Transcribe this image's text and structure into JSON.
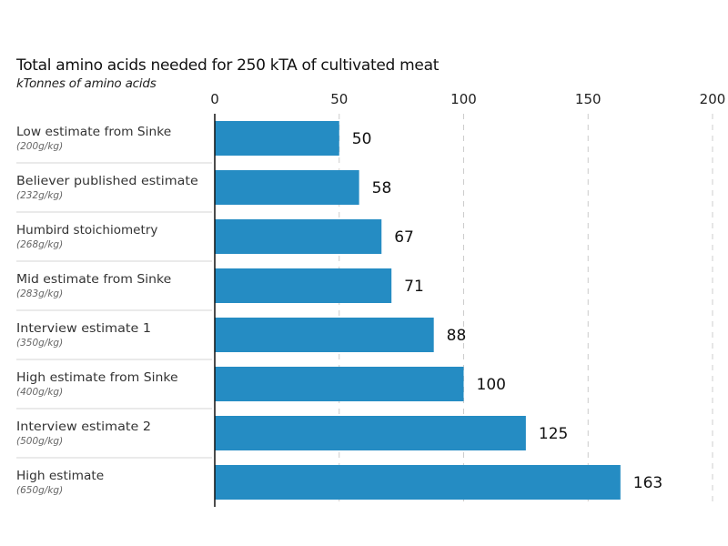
{
  "chart_data": {
    "type": "bar",
    "orientation": "horizontal",
    "title": "Total amino acids needed for 250 kTA of cultivated meat",
    "subtitle": "kTonnes of amino acids",
    "categories": [
      {
        "label": "Low estimate from Sinke",
        "sublabel": "(200g/kg)"
      },
      {
        "label": "Believer published estimate",
        "sublabel": "(232g/kg)"
      },
      {
        "label": "Humbird stoichiometry",
        "sublabel": "(268g/kg)"
      },
      {
        "label": "Mid estimate from Sinke",
        "sublabel": "(283g/kg)"
      },
      {
        "label": "Interview estimate 1",
        "sublabel": "(350g/kg)"
      },
      {
        "label": "High estimate from Sinke",
        "sublabel": "(400g/kg)"
      },
      {
        "label": "Interview estimate 2",
        "sublabel": "(500g/kg)"
      },
      {
        "label": "High estimate",
        "sublabel": "(650g/kg)"
      }
    ],
    "values": [
      50,
      58,
      67,
      71,
      88,
      100,
      125,
      163
    ],
    "xlim": [
      0,
      200
    ],
    "xticks": [
      0,
      50,
      100,
      150,
      200
    ],
    "xaxis_position": "top",
    "grid": "vertical dashed",
    "bar_color": "#258cc3",
    "data_labels": true
  }
}
